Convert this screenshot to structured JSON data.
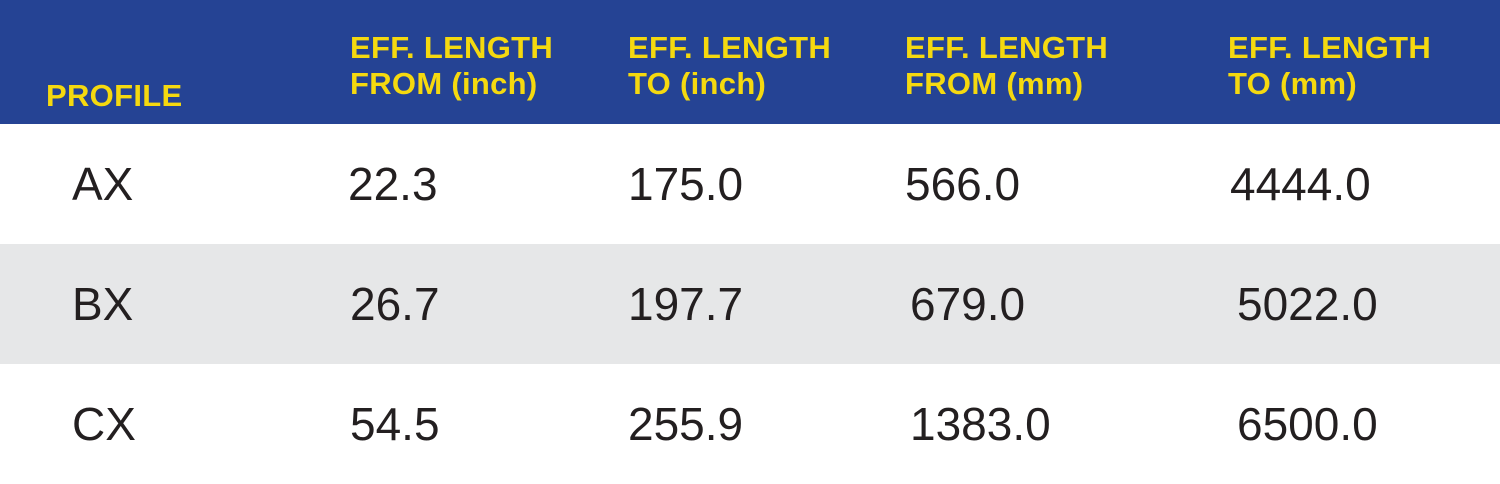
{
  "header": {
    "background": "#254394",
    "text_color": "#f5d90f",
    "columns": [
      {
        "line1": "",
        "line2": "PROFILE"
      },
      {
        "line1": "EFF. LENGTH",
        "line2": "FROM (inch)"
      },
      {
        "line1": "EFF. LENGTH",
        "line2": "TO (inch)"
      },
      {
        "line1": "EFF. LENGTH",
        "line2": "FROM (mm)"
      },
      {
        "line1": "EFF. LENGTH",
        "line2": "TO (mm)"
      }
    ]
  },
  "rows": [
    [
      "AX",
      "22.3",
      "175.0",
      "566.0",
      "4444.0"
    ],
    [
      "BX",
      "26.7",
      "197.7",
      "679.0",
      "5022.0"
    ],
    [
      "CX",
      "54.5",
      "255.9",
      "1383.0",
      "6500.0"
    ]
  ],
  "row_colors": [
    "#ffffff",
    "#e6e7e8",
    "#ffffff"
  ]
}
